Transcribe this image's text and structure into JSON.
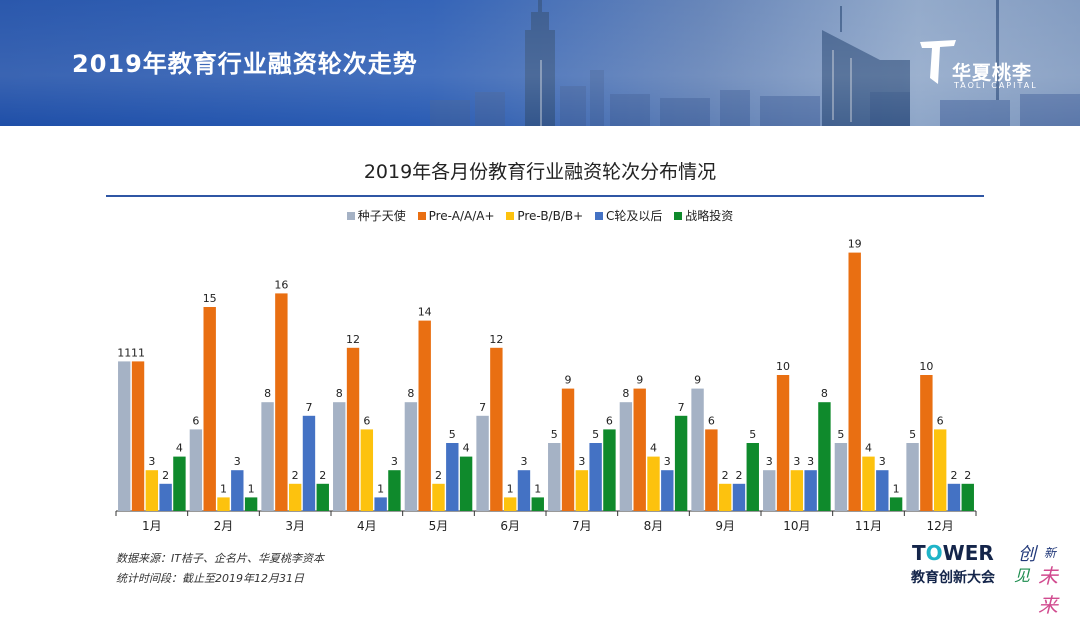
{
  "header": {
    "title": "2019年教育行业融资轮次走势",
    "brand_cn": "华夏桃李",
    "brand_en": "TAOLI CAPITAL"
  },
  "chart_data": {
    "type": "bar",
    "title": "2019年各月份教育行业融资轮次分布情况",
    "xlabel": "",
    "ylabel": "",
    "ylim": [
      0,
      20
    ],
    "grid": false,
    "legend_position": "top-center",
    "categories": [
      "1月",
      "2月",
      "3月",
      "4月",
      "5月",
      "6月",
      "7月",
      "8月",
      "9月",
      "10月",
      "11月",
      "12月"
    ],
    "series": [
      {
        "name": "种子天使",
        "color": "#a5b2c5",
        "values": [
          11,
          6,
          8,
          8,
          8,
          7,
          5,
          8,
          9,
          3,
          5,
          5
        ]
      },
      {
        "name": "Pre-A/A/A+",
        "color": "#e96f12",
        "values": [
          11,
          15,
          16,
          12,
          14,
          12,
          9,
          9,
          6,
          10,
          19,
          10
        ]
      },
      {
        "name": "Pre-B/B/B+",
        "color": "#fdc20e",
        "values": [
          3,
          1,
          2,
          6,
          2,
          1,
          3,
          4,
          2,
          3,
          4,
          6
        ]
      },
      {
        "name": "C轮及以后",
        "color": "#4472c4",
        "values": [
          2,
          3,
          7,
          1,
          5,
          3,
          5,
          3,
          2,
          3,
          3,
          2
        ]
      },
      {
        "name": "战略投资",
        "color": "#0f8a2c",
        "values": [
          4,
          1,
          2,
          3,
          4,
          1,
          6,
          7,
          5,
          8,
          1,
          2
        ]
      }
    ]
  },
  "footer": {
    "source": "数据来源：IT桔子、企名片、华夏桃李资本",
    "period": "统计时间段：截止至2019年12月31日"
  },
  "event_logo": {
    "name_a": "T",
    "name_o": "O",
    "name_b": "WER",
    "subtitle": "教育创新大会",
    "slogan_1": "创",
    "slogan_2": "新",
    "slogan_3": "见",
    "slogan_4": "未来"
  }
}
